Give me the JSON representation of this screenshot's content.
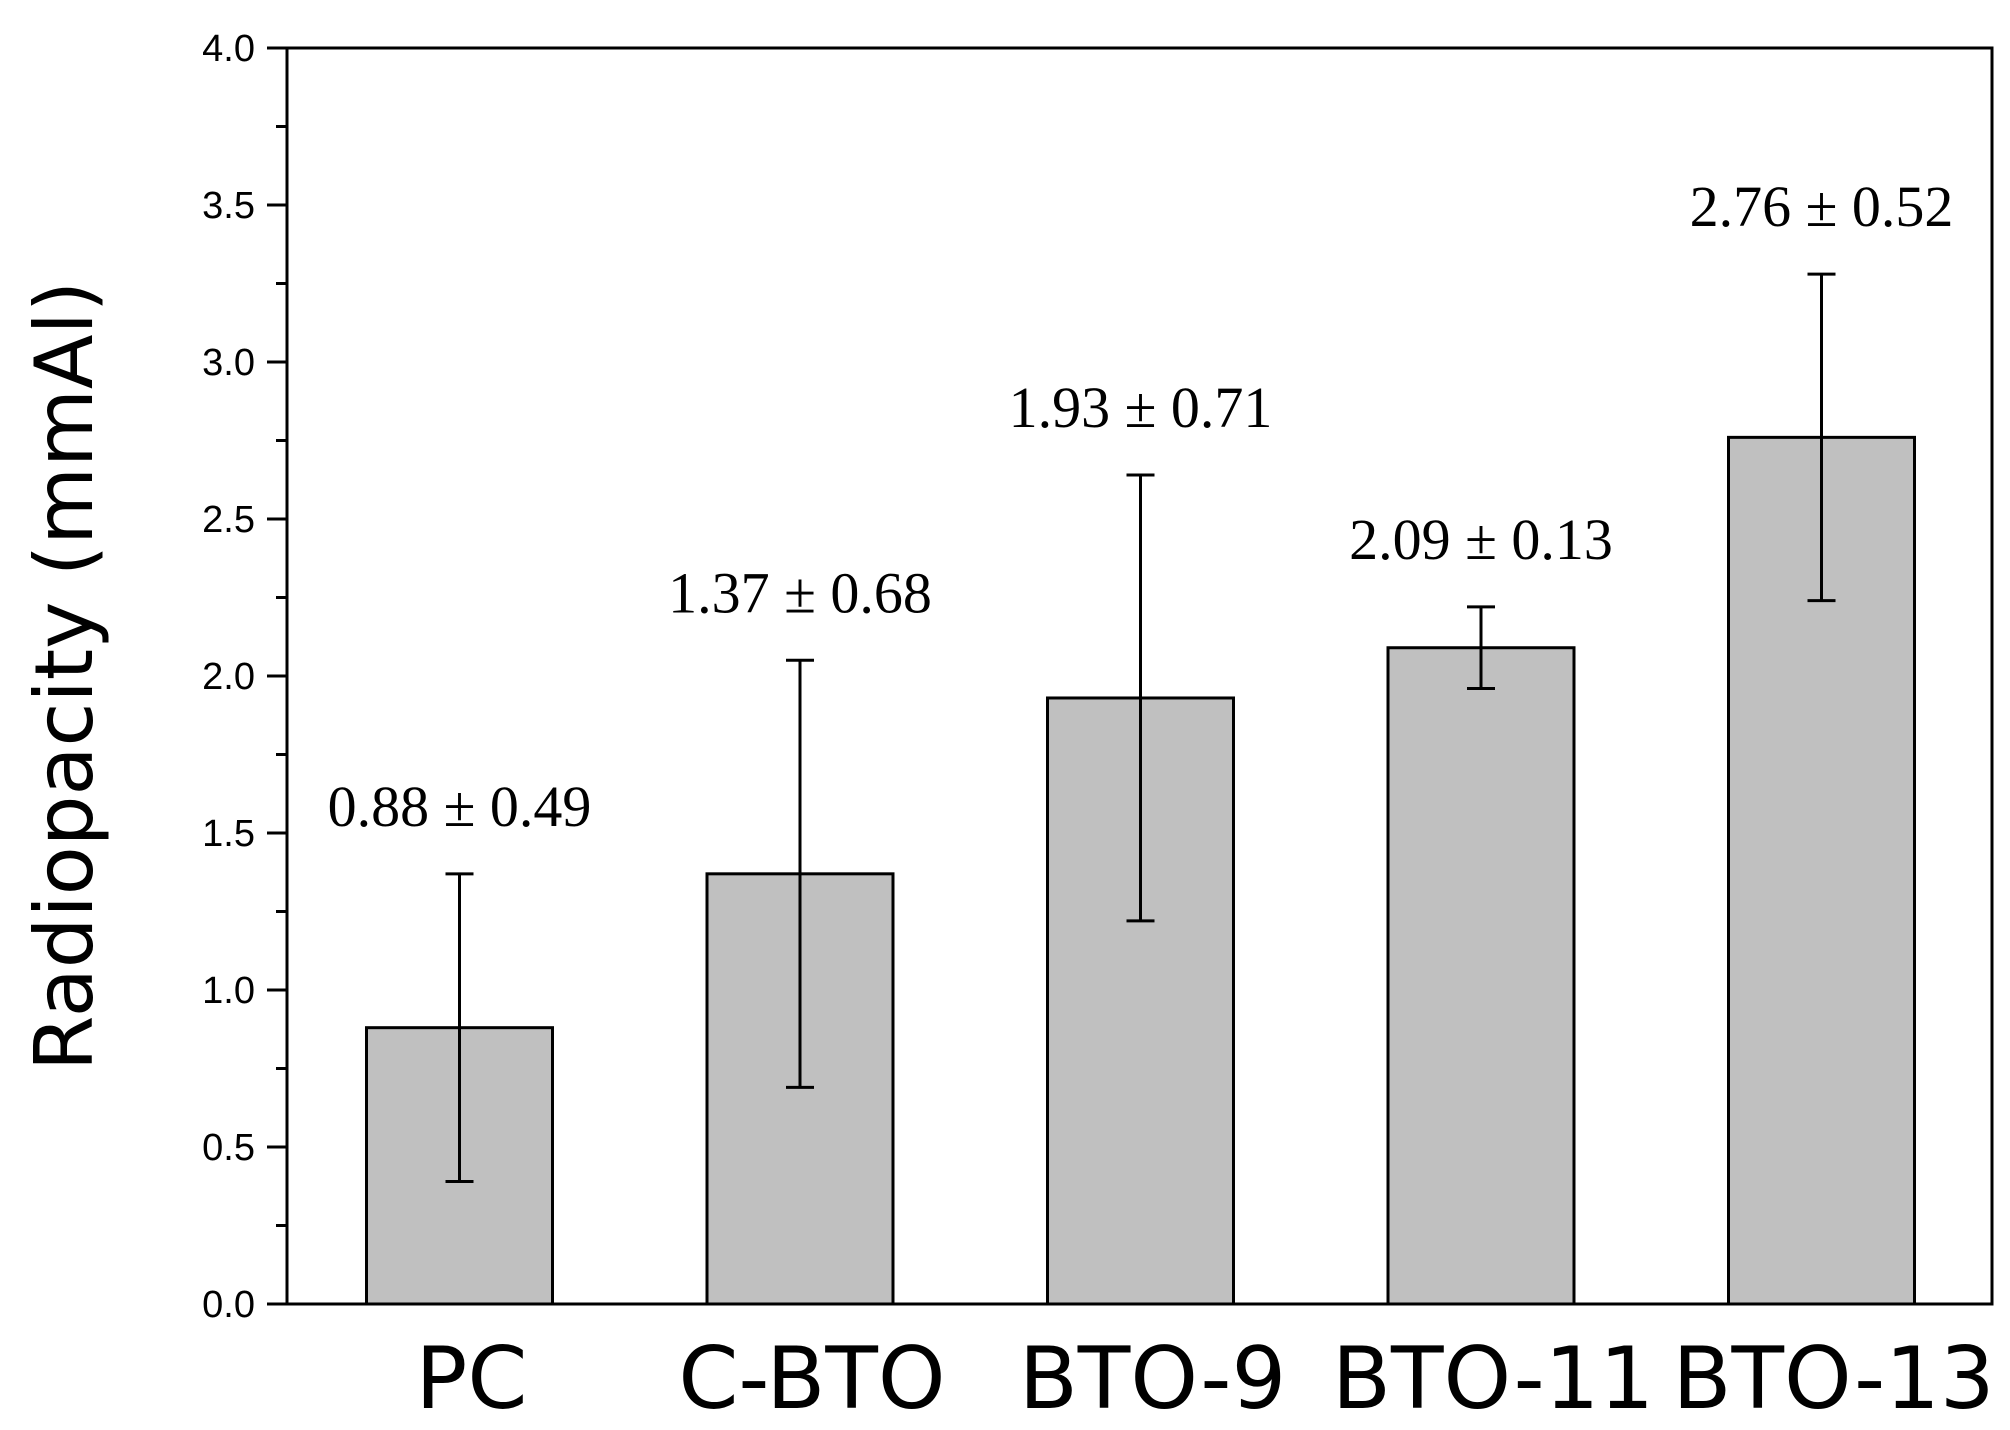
{
  "chart_data": {
    "type": "bar",
    "title": "",
    "xlabel": "",
    "ylabel": "Radiopacity (mmAl)",
    "categories": [
      "PC",
      "C-BTO",
      "BTO-9",
      "BTO-11",
      "BTO-13"
    ],
    "values": [
      0.88,
      1.37,
      1.93,
      2.09,
      2.76
    ],
    "errors": [
      0.49,
      0.68,
      0.71,
      0.13,
      0.52
    ],
    "data_labels": [
      "0.88 ± 0.49",
      "1.37 ± 0.68",
      "1.93 ± 0.71",
      "2.09 ± 0.13",
      "2.76 ± 0.52"
    ],
    "ylim": [
      0,
      4.0
    ],
    "yticks": [
      "0.0",
      "0.5",
      "1.0",
      "1.5",
      "2.0",
      "2.5",
      "3.0",
      "3.5",
      "4.0"
    ],
    "grid": false,
    "bar_color": "#c0c0c0",
    "edge_color": "#000000"
  }
}
